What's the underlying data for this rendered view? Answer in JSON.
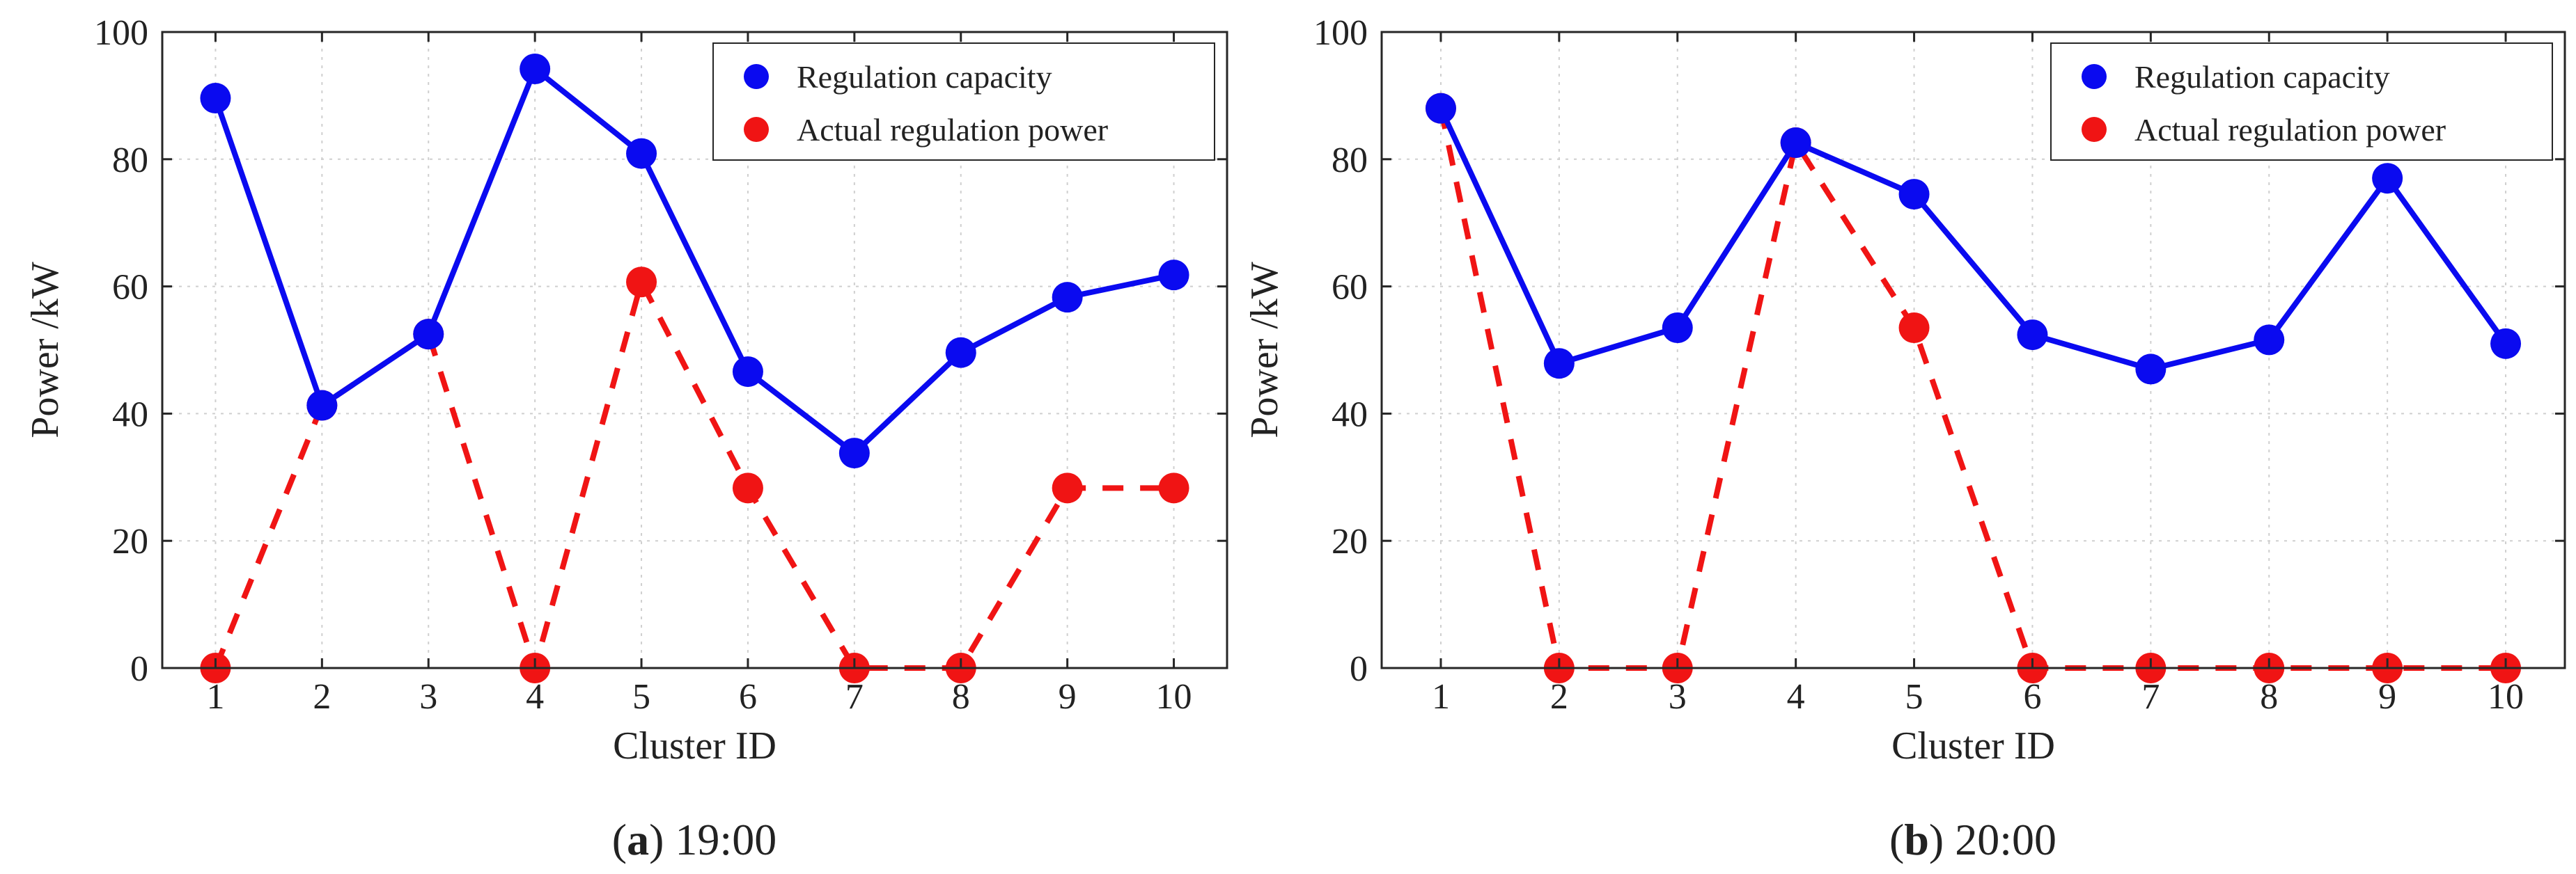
{
  "colors": {
    "capacity": "#0a0af0",
    "actual": "#f01414",
    "grid": "#cfcfcf",
    "axis": "#262626"
  },
  "chart_data": [
    {
      "type": "line",
      "caption_letter": "a",
      "caption_time": "19:00",
      "xlabel": "Cluster ID",
      "ylabel": "Power /kW",
      "xlim": [
        0.5,
        10.5
      ],
      "ylim": [
        0,
        100
      ],
      "x_ticks": [
        "1",
        "2",
        "3",
        "4",
        "5",
        "6",
        "7",
        "8",
        "9",
        "10"
      ],
      "y_ticks": [
        "0",
        "20",
        "40",
        "60",
        "80",
        "100"
      ],
      "grid": true,
      "legend_position": "top-right",
      "x": [
        1,
        2,
        3,
        4,
        5,
        6,
        7,
        8,
        9,
        10
      ],
      "series": [
        {
          "name": "Regulation capacity",
          "style": "solid",
          "values": [
            89.6,
            41.3,
            52.5,
            94.2,
            80.9,
            46.6,
            33.8,
            49.6,
            58.3,
            61.8
          ]
        },
        {
          "name": "Actual regulation power",
          "style": "dashed",
          "values": [
            0,
            41.3,
            52.5,
            0,
            60.7,
            28.3,
            0,
            0,
            28.3,
            28.3
          ]
        }
      ]
    },
    {
      "type": "line",
      "caption_letter": "b",
      "caption_time": "20:00",
      "xlabel": "Cluster ID",
      "ylabel": "Power /kW",
      "xlim": [
        0.5,
        10.5
      ],
      "ylim": [
        0,
        100
      ],
      "x_ticks": [
        "1",
        "2",
        "3",
        "4",
        "5",
        "6",
        "7",
        "8",
        "9",
        "10"
      ],
      "y_ticks": [
        "0",
        "20",
        "40",
        "60",
        "80",
        "100"
      ],
      "grid": true,
      "legend_position": "top-right",
      "x": [
        1,
        2,
        3,
        4,
        5,
        6,
        7,
        8,
        9,
        10
      ],
      "series": [
        {
          "name": "Regulation capacity",
          "style": "solid",
          "values": [
            88.0,
            47.9,
            53.5,
            82.6,
            74.5,
            52.4,
            47.0,
            51.6,
            77.0,
            51.0
          ]
        },
        {
          "name": "Actual regulation power",
          "style": "dashed",
          "values": [
            88.0,
            0,
            0,
            82.6,
            53.5,
            0,
            0,
            0,
            0,
            0
          ]
        }
      ]
    }
  ]
}
